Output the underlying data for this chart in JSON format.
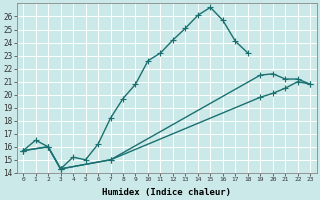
{
  "xlabel": "Humidex (Indice chaleur)",
  "bg_color": "#cce9e9",
  "grid_color": "#ffffff",
  "line_color": "#1a7070",
  "xlim": [
    -0.5,
    23.5
  ],
  "ylim": [
    14,
    27
  ],
  "xticks": [
    0,
    1,
    2,
    3,
    4,
    5,
    6,
    7,
    8,
    9,
    10,
    11,
    12,
    13,
    14,
    15,
    16,
    17,
    18,
    19,
    20,
    21,
    22,
    23
  ],
  "yticks": [
    14,
    15,
    16,
    17,
    18,
    19,
    20,
    21,
    22,
    23,
    24,
    25,
    26
  ],
  "line1": {
    "x": [
      0,
      1,
      2,
      3,
      4,
      5,
      6,
      7,
      8,
      9,
      10,
      11,
      12,
      13,
      14,
      15,
      16,
      17,
      18
    ],
    "y": [
      15.7,
      16.5,
      16.0,
      14.3,
      15.2,
      15.0,
      16.2,
      18.2,
      19.7,
      20.8,
      22.6,
      23.2,
      24.2,
      25.1,
      26.1,
      26.7,
      25.7,
      24.1,
      23.2
    ]
  },
  "line2": {
    "x": [
      0,
      2,
      3,
      7,
      19,
      20,
      21,
      22,
      23
    ],
    "y": [
      15.7,
      16.0,
      14.3,
      15.0,
      21.5,
      21.6,
      21.2,
      21.2,
      20.8
    ]
  },
  "line3": {
    "x": [
      0,
      2,
      3,
      7,
      19,
      20,
      21,
      22,
      23
    ],
    "y": [
      15.7,
      16.0,
      14.3,
      15.0,
      19.8,
      20.1,
      20.5,
      21.0,
      20.8
    ]
  },
  "marker": "+",
  "markersize": 4,
  "linewidth": 1.0
}
